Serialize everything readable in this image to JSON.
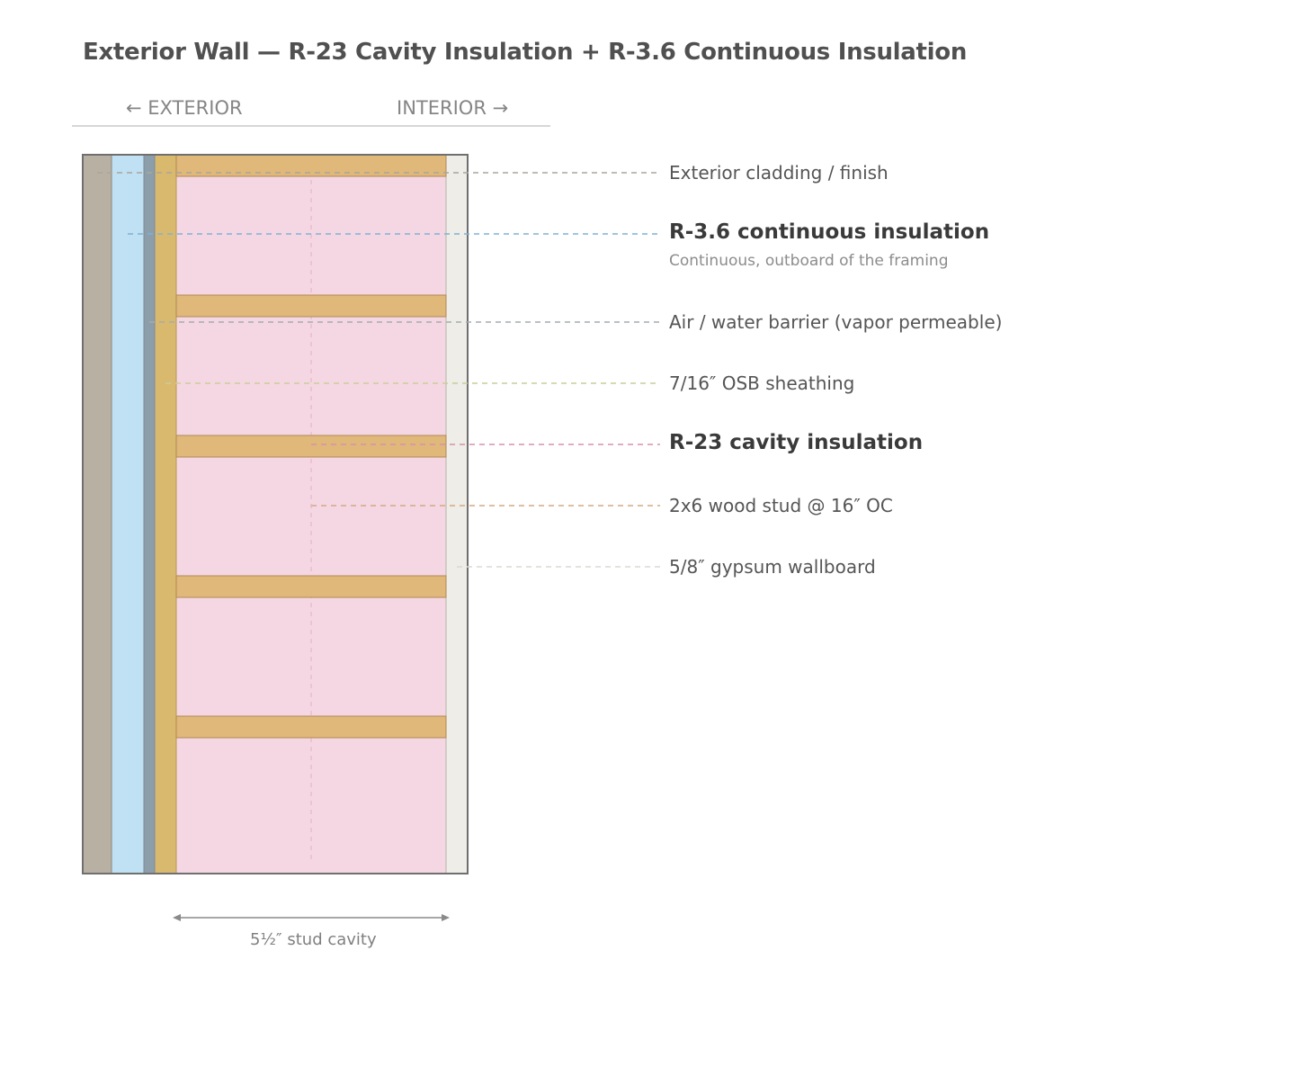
{
  "title": "Exterior Wall — R-23 Cavity Insulation + R-3.6 Continuous Insulation",
  "directions": {
    "exterior": "← EXTERIOR",
    "interior": "INTERIOR →"
  },
  "layers": [
    {
      "id": "cladding",
      "label": "Exterior cladding / finish",
      "color": "#b8b1a3"
    },
    {
      "id": "ci",
      "label": "R-3.6 continuous insulation",
      "sublabel": "Continuous, outboard of the framing",
      "color": "#c0e0f3",
      "emphasis": true
    },
    {
      "id": "wrb",
      "label": "Air / water barrier (vapor permeable)",
      "color": "#8d9eab"
    },
    {
      "id": "osb",
      "label": "7/16″ OSB sheathing",
      "color": "#d9b96e"
    },
    {
      "id": "cavity",
      "label": "R-23 cavity insulation",
      "color": "#f5d7e3",
      "emphasis": true
    },
    {
      "id": "stud",
      "label": "2x6 wood stud @ 16″ OC",
      "color": "#e0b87a"
    },
    {
      "id": "gypsum",
      "label": "5/8″ gypsum wallboard",
      "color": "#ededе6"
    }
  ],
  "leader_colors": {
    "cladding": "#a9a59c",
    "ci": "#7fb2d3",
    "wrb": "#a6acae",
    "osb": "#c9cd9a",
    "cavity": "#d790ae",
    "stud": "#d2aa82",
    "gypsum": "#d8d9d3"
  },
  "dimension": {
    "label": "5½″ stud cavity"
  }
}
